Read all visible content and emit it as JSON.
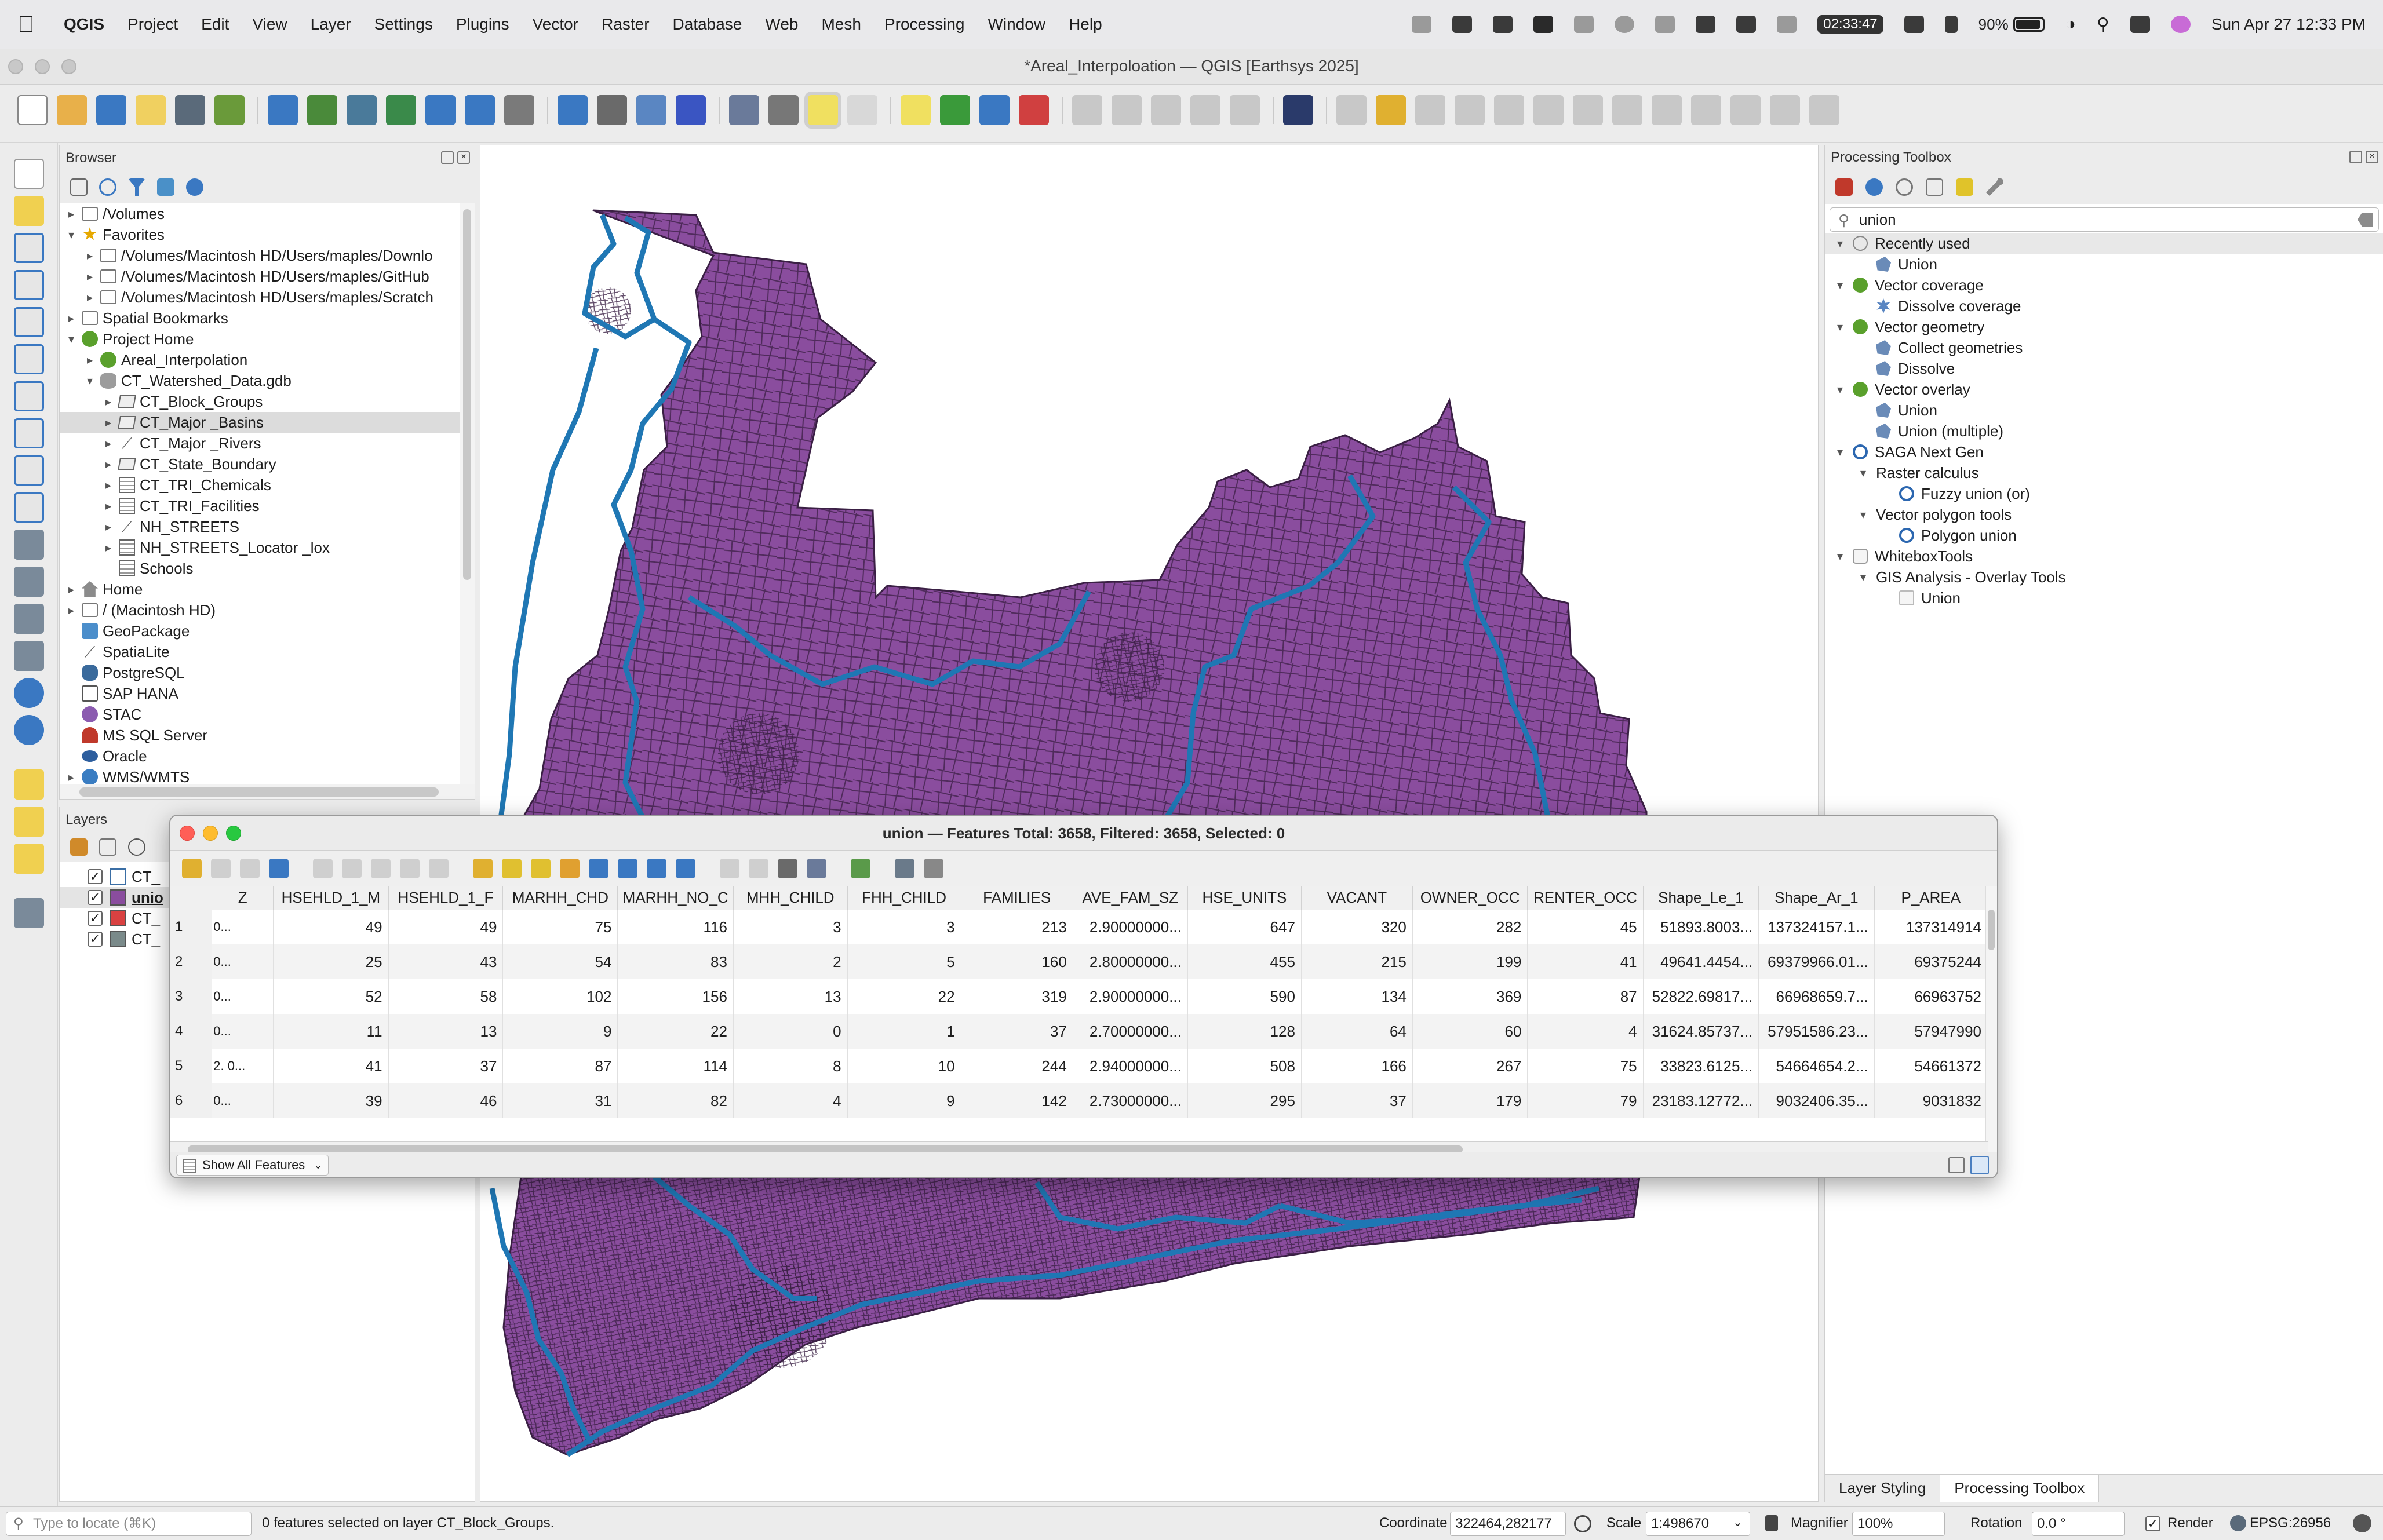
{
  "menubar": {
    "app": "QGIS",
    "menus": [
      "Project",
      "Edit",
      "View",
      "Layer",
      "Settings",
      "Plugins",
      "Vector",
      "Raster",
      "Database",
      "Web",
      "Mesh",
      "Processing",
      "Window",
      "Help"
    ],
    "timer": "02:33:47",
    "battery": "90%",
    "battery_level": 0.9,
    "datetime": "Sun Apr 27  12:33 PM"
  },
  "window": {
    "title": "*Areal_Interpoloation — QGIS [Earthsys 2025]"
  },
  "browser": {
    "title": "Browser",
    "items": [
      {
        "label": "/Volumes",
        "arrow": "▸",
        "icon": "folder-icon",
        "indent": 0
      },
      {
        "label": "Favorites",
        "arrow": "▾",
        "icon": "star-icon",
        "indent": 0
      },
      {
        "label": "/Volumes/Macintosh HD/Users/maples/Downlo",
        "arrow": "▸",
        "icon": "folder-icon",
        "indent": 1
      },
      {
        "label": "/Volumes/Macintosh HD/Users/maples/GitHub",
        "arrow": "▸",
        "icon": "folder-icon",
        "indent": 1
      },
      {
        "label": "/Volumes/Macintosh HD/Users/maples/Scratch",
        "arrow": "▸",
        "icon": "folder-icon",
        "indent": 1
      },
      {
        "label": "Spatial Bookmarks",
        "arrow": "▸",
        "icon": "bookmark-folder-icon",
        "indent": 0
      },
      {
        "label": "Project Home",
        "arrow": "▾",
        "icon": "project-home-icon",
        "indent": 0
      },
      {
        "label": "Areal_Interpolation",
        "arrow": "▸",
        "icon": "qgis-project-icon",
        "indent": 1
      },
      {
        "label": "CT_Watershed_Data.gdb",
        "arrow": "▾",
        "icon": "database-icon",
        "indent": 1
      },
      {
        "label": "CT_Block_Groups",
        "arrow": "▸",
        "icon": "polygon-layer-icon",
        "indent": 2
      },
      {
        "label": "CT_Major _Basins",
        "arrow": "▸",
        "icon": "polygon-layer-icon",
        "indent": 2,
        "selected": true
      },
      {
        "label": "CT_Major _Rivers",
        "arrow": "▸",
        "icon": "line-layer-icon",
        "indent": 2
      },
      {
        "label": "CT_State_Boundary",
        "arrow": "▸",
        "icon": "polygon-layer-icon",
        "indent": 2
      },
      {
        "label": "CT_TRI_Chemicals",
        "arrow": "▸",
        "icon": "table-icon",
        "indent": 2
      },
      {
        "label": "CT_TRI_Facilities",
        "arrow": "▸",
        "icon": "table-icon",
        "indent": 2
      },
      {
        "label": "NH_STREETS",
        "arrow": "▸",
        "icon": "line-layer-icon",
        "indent": 2
      },
      {
        "label": "NH_STREETS_Locator _lox",
        "arrow": "▸",
        "icon": "table-icon",
        "indent": 2
      },
      {
        "label": "Schools",
        "arrow": "",
        "icon": "table-icon",
        "indent": 2
      },
      {
        "label": "Home",
        "arrow": "▸",
        "icon": "home-icon",
        "indent": 0
      },
      {
        "label": "/ (Macintosh HD)",
        "arrow": "▸",
        "icon": "folder-icon",
        "indent": 0
      },
      {
        "label": "GeoPackage",
        "arrow": "",
        "icon": "geopackage-icon",
        "indent": 0
      },
      {
        "label": "SpatiaLite",
        "arrow": "",
        "icon": "spatialite-icon",
        "indent": 0
      },
      {
        "label": "PostgreSQL",
        "arrow": "",
        "icon": "postgresql-icon",
        "indent": 0
      },
      {
        "label": "SAP HANA",
        "arrow": "",
        "icon": "sap-hana-icon",
        "indent": 0
      },
      {
        "label": "STAC",
        "arrow": "",
        "icon": "stac-icon",
        "indent": 0
      },
      {
        "label": "MS SQL Server",
        "arrow": "",
        "icon": "mssql-icon",
        "indent": 0
      },
      {
        "label": "Oracle",
        "arrow": "",
        "icon": "oracle-icon",
        "indent": 0
      },
      {
        "label": "WMS/WMTS",
        "arrow": "▸",
        "icon": "wms-icon",
        "indent": 0
      }
    ]
  },
  "layers": {
    "title": "Layers",
    "items": [
      {
        "label": "CT_",
        "color": "#ffffff",
        "border": "#3a6ea5",
        "bold": false
      },
      {
        "label": "unio",
        "color": "#8a4d9e",
        "border": "#555555",
        "bold": true
      },
      {
        "label": "CT_",
        "color": "#d94141",
        "border": "#555555",
        "bold": false
      },
      {
        "label": "CT_",
        "color": "#7a8a8a",
        "border": "#555555",
        "bold": false
      }
    ]
  },
  "toolbox": {
    "title": "Processing Toolbox",
    "search_value": "union",
    "items": [
      {
        "label": "Recently used",
        "arrow": "▾",
        "icon": "clock-icon",
        "indent": 0,
        "hl": true
      },
      {
        "label": "Union",
        "arrow": "",
        "icon": "algorithm-icon",
        "indent": 1
      },
      {
        "label": "Vector coverage",
        "arrow": "▾",
        "icon": "qgis-provider-icon",
        "indent": 0
      },
      {
        "label": "Dissolve coverage",
        "arrow": "",
        "icon": "gear-algorithm-icon",
        "indent": 1
      },
      {
        "label": "Vector geometry",
        "arrow": "▾",
        "icon": "qgis-provider-icon",
        "indent": 0
      },
      {
        "label": "Collect geometries",
        "arrow": "",
        "icon": "algorithm-icon",
        "indent": 1
      },
      {
        "label": "Dissolve",
        "arrow": "",
        "icon": "algorithm-icon",
        "indent": 1
      },
      {
        "label": "Vector overlay",
        "arrow": "▾",
        "icon": "qgis-provider-icon",
        "indent": 0
      },
      {
        "label": "Union",
        "arrow": "",
        "icon": "algorithm-icon",
        "indent": 1
      },
      {
        "label": "Union (multiple)",
        "arrow": "",
        "icon": "algorithm-icon",
        "indent": 1
      },
      {
        "label": "SAGA Next Gen",
        "arrow": "▾",
        "icon": "saga-icon",
        "indent": 0
      },
      {
        "label": "Raster calculus",
        "arrow": "▾",
        "icon": "",
        "indent": 1
      },
      {
        "label": "Fuzzy union (or)",
        "arrow": "",
        "icon": "saga-icon",
        "indent": 2
      },
      {
        "label": "Vector polygon tools",
        "arrow": "▾",
        "icon": "",
        "indent": 1
      },
      {
        "label": "Polygon union",
        "arrow": "",
        "icon": "saga-icon",
        "indent": 2
      },
      {
        "label": "WhiteboxTools",
        "arrow": "▾",
        "icon": "whitebox-icon",
        "indent": 0
      },
      {
        "label": "GIS Analysis - Overlay Tools",
        "arrow": "▾",
        "icon": "",
        "indent": 1
      },
      {
        "label": "Union",
        "arrow": "",
        "icon": "whitebox-tool-icon",
        "indent": 2
      }
    ],
    "tabs": [
      "Layer Styling",
      "Processing Toolbox"
    ],
    "active_tab": 1
  },
  "attribute_table": {
    "title": "union — Features Total: 3658, Filtered: 3658, Selected: 0",
    "columns": [
      "Z",
      "HSEHLD_1_M",
      "HSEHLD_1_F",
      "MARHH_CHD",
      "MARHH_NO_C",
      "MHH_CHILD",
      "FHH_CHILD",
      "FAMILIES",
      "AVE_FAM_SZ",
      "HSE_UNITS",
      "VACANT",
      "OWNER_OCC",
      "RENTER_OCC",
      "Shape_Le_1",
      "Shape_Ar_1",
      "P_AREA"
    ],
    "rows": [
      {
        "id": "1",
        "cells": [
          "0...",
          "49",
          "49",
          "75",
          "116",
          "3",
          "3",
          "213",
          "2.90000000...",
          "647",
          "320",
          "282",
          "45",
          "51893.8003...",
          "137324157.1...",
          "137314914"
        ]
      },
      {
        "id": "2",
        "cells": [
          "0...",
          "25",
          "43",
          "54",
          "83",
          "2",
          "5",
          "160",
          "2.80000000...",
          "455",
          "215",
          "199",
          "41",
          "49641.4454...",
          "69379966.01...",
          "69375244"
        ]
      },
      {
        "id": "3",
        "cells": [
          "0...",
          "52",
          "58",
          "102",
          "156",
          "13",
          "22",
          "319",
          "2.90000000...",
          "590",
          "134",
          "369",
          "87",
          "52822.69817...",
          "66968659.7...",
          "66963752"
        ]
      },
      {
        "id": "4",
        "cells": [
          "0...",
          "11",
          "13",
          "9",
          "22",
          "0",
          "1",
          "37",
          "2.70000000...",
          "128",
          "64",
          "60",
          "4",
          "31624.85737...",
          "57951586.23...",
          "57947990"
        ]
      },
      {
        "id": "5",
        "cells": [
          "2. 0...",
          "41",
          "37",
          "87",
          "114",
          "8",
          "10",
          "244",
          "2.94000000...",
          "508",
          "166",
          "267",
          "75",
          "33823.6125...",
          "54664654.2...",
          "54661372"
        ]
      },
      {
        "id": "6",
        "cells": [
          "0...",
          "39",
          "46",
          "31",
          "82",
          "4",
          "9",
          "142",
          "2.73000000...",
          "295",
          "37",
          "179",
          "79",
          "23183.12772...",
          "9032406.35...",
          "9031832"
        ]
      }
    ],
    "show_all_label": "Show All Features"
  },
  "statusbar": {
    "locator_placeholder": "Type to locate (⌘K)",
    "message": "0 features selected on layer CT_Block_Groups.",
    "coordinate_label": "Coordinate",
    "coordinate_value": "322464,282177",
    "scale_label": "Scale",
    "scale_value": "1:498670",
    "magnifier_label": "Magnifier",
    "magnifier_value": "100%",
    "rotation_label": "Rotation",
    "rotation_value": "0.0 °",
    "render_label": "Render",
    "crs": "EPSG:26956"
  },
  "colors": {
    "map_fill": "#8a4d9e",
    "basin_outline": "#1f77b4",
    "polygon_stroke": "#3a1f44"
  }
}
